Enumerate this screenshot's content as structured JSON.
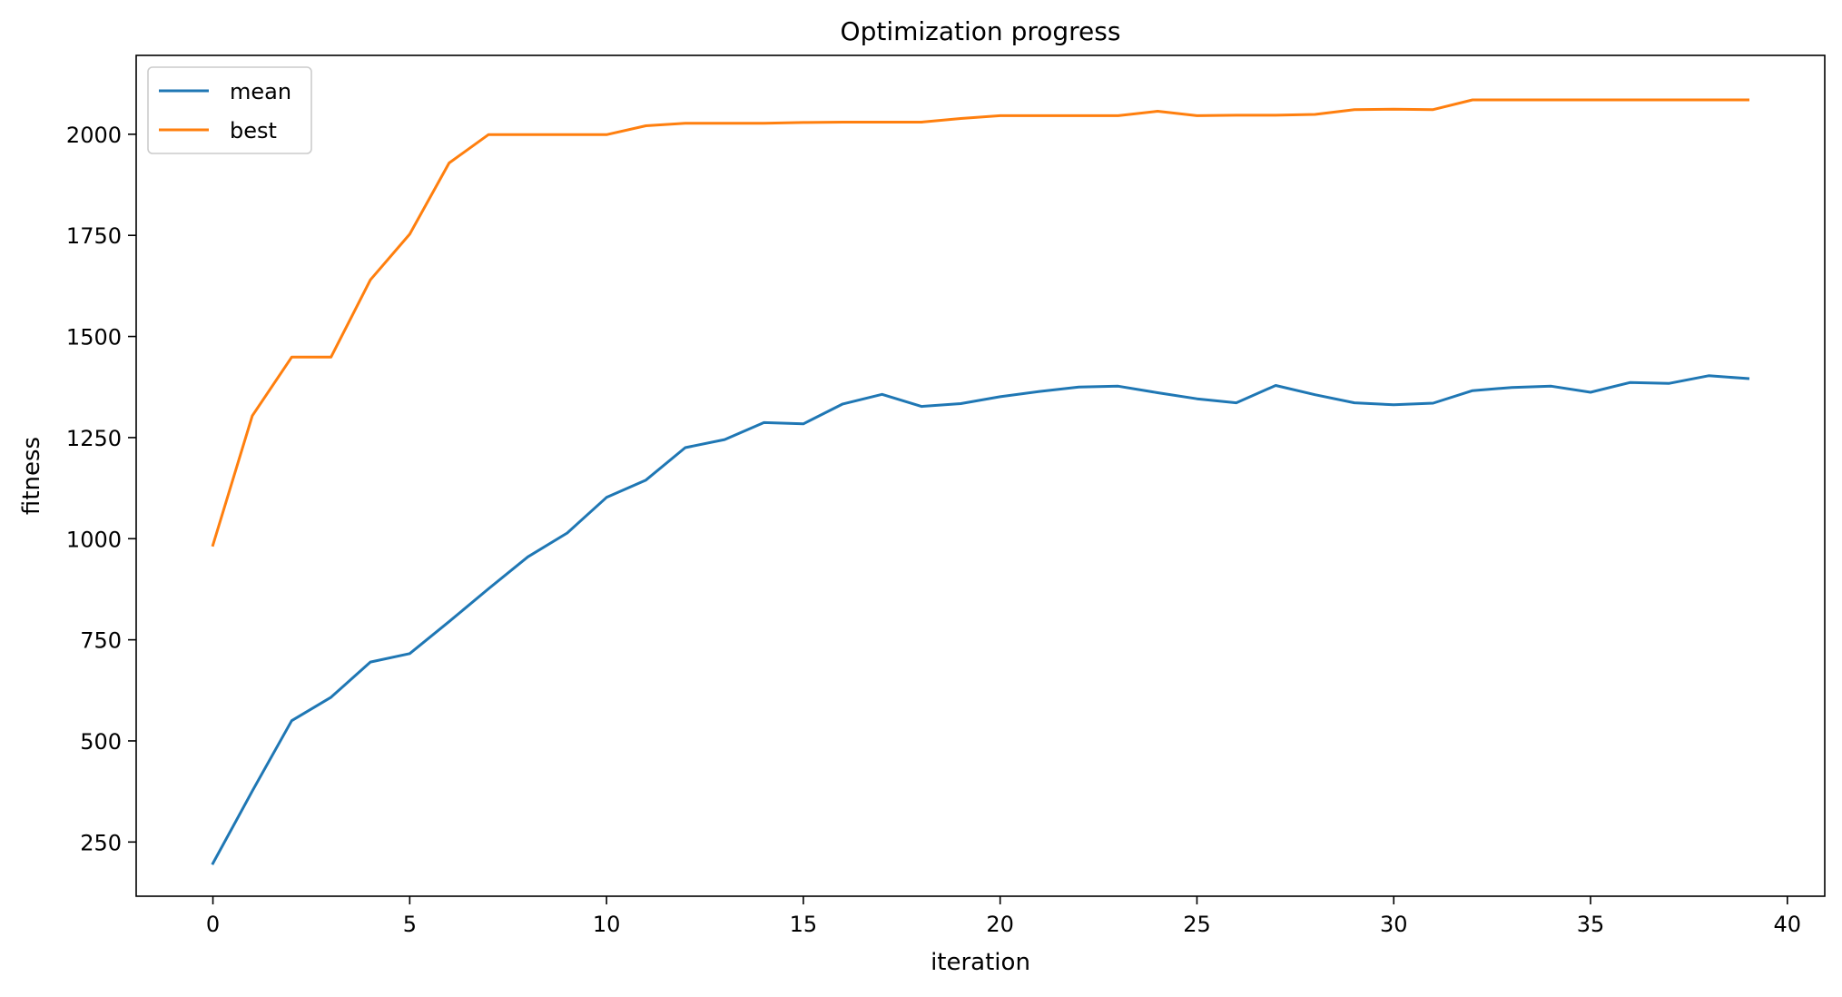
{
  "chart_data": {
    "type": "line",
    "title": "Optimization progress",
    "xlabel": "iteration",
    "ylabel": "fitness",
    "xlim": [
      -1.95,
      40.95
    ],
    "ylim": [
      116,
      2195
    ],
    "xticks": [
      0,
      5,
      10,
      15,
      20,
      25,
      30,
      35,
      40
    ],
    "yticks": [
      250,
      500,
      750,
      1000,
      1250,
      1500,
      1750,
      2000
    ],
    "grid": false,
    "legend_position": "top-left",
    "x": [
      0,
      1,
      2,
      3,
      4,
      5,
      6,
      7,
      8,
      9,
      10,
      11,
      12,
      13,
      14,
      15,
      16,
      17,
      18,
      19,
      20,
      21,
      22,
      23,
      24,
      25,
      26,
      27,
      28,
      29,
      30,
      31,
      32,
      33,
      34,
      35,
      36,
      37,
      38,
      39
    ],
    "series": [
      {
        "name": "mean",
        "color": "#1f77b4",
        "values": [
          197,
          376,
          550,
          608,
          695,
          716,
          795,
          876,
          955,
          1014,
          1102,
          1145,
          1225,
          1245,
          1287,
          1284,
          1333,
          1357,
          1327,
          1334,
          1351,
          1364,
          1375,
          1377,
          1361,
          1346,
          1336,
          1379,
          1356,
          1336,
          1331,
          1335,
          1366,
          1374,
          1377,
          1362,
          1386,
          1384,
          1403,
          1396
        ]
      },
      {
        "name": "best",
        "color": "#ff7f0e",
        "values": [
          984,
          1304,
          1449,
          1449,
          1640,
          1753,
          1929,
          1999,
          1999,
          1999,
          1999,
          2021,
          2027,
          2027,
          2027,
          2029,
          2030,
          2030,
          2030,
          2039,
          2046,
          2046,
          2046,
          2046,
          2057,
          2046,
          2047,
          2047,
          2049,
          2061,
          2062,
          2061,
          2085,
          2085,
          2085,
          2085,
          2085,
          2085,
          2085,
          2085
        ]
      }
    ]
  }
}
